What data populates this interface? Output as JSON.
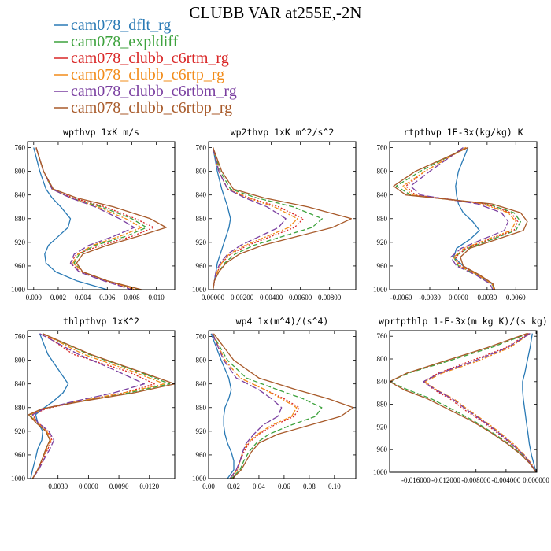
{
  "title": "CLUBB VAR at255E,-2N",
  "legend": [
    {
      "label": "cam078_dflt_rg",
      "color": "#2a7ab5",
      "dash": "solid"
    },
    {
      "label": "cam078_expldiff",
      "color": "#3da23d",
      "dash": "dash"
    },
    {
      "label": "cam078_clubb_c6rtm_rg",
      "color": "#d92626",
      "dash": "dot"
    },
    {
      "label": "cam078_clubb_c6rtp_rg",
      "color": "#f28c1a",
      "dash": "dashdot"
    },
    {
      "label": "cam078_clubb_c6rtbm_rg",
      "color": "#7a3fa0",
      "dash": "longdash"
    },
    {
      "label": "cam078_clubb_c6rtbp_rg",
      "color": "#a85a2a",
      "dash": "solid"
    }
  ],
  "chart_data": [
    {
      "type": "line",
      "title": "wpthvp  1xK m/s",
      "xlim": [
        -0.0005,
        0.0115
      ],
      "ylim": [
        1000,
        750
      ],
      "xticks": [
        "0.000",
        "0.002",
        "0.004",
        "0.006",
        "0.008",
        "0.010"
      ],
      "xtick_values": [
        0,
        0.002,
        0.004,
        0.006,
        0.008,
        0.01
      ],
      "yticks": [
        760,
        800,
        840,
        880,
        920,
        960,
        1000
      ],
      "y": [
        760,
        800,
        830,
        845,
        860,
        880,
        895,
        910,
        925,
        940,
        955,
        970,
        985,
        1000
      ],
      "series": [
        {
          "values": [
            0.0,
            0.0005,
            0.001,
            0.0015,
            0.0022,
            0.003,
            0.0028,
            0.002,
            0.0012,
            0.0009,
            0.001,
            0.0018,
            0.0035,
            0.006
          ]
        },
        {
          "values": [
            0.0002,
            0.0008,
            0.0015,
            0.003,
            0.0055,
            0.008,
            0.0092,
            0.0075,
            0.005,
            0.0037,
            0.0033,
            0.004,
            0.006,
            0.0085
          ]
        },
        {
          "values": [
            0.0002,
            0.0008,
            0.0015,
            0.0032,
            0.0058,
            0.0083,
            0.0098,
            0.008,
            0.0055,
            0.0035,
            0.003,
            0.0038,
            0.0058,
            0.0082
          ]
        },
        {
          "values": [
            0.0002,
            0.0008,
            0.0015,
            0.003,
            0.0052,
            0.0075,
            0.0088,
            0.007,
            0.0048,
            0.0036,
            0.0032,
            0.004,
            0.006,
            0.0084
          ]
        },
        {
          "values": [
            0.0002,
            0.0008,
            0.0015,
            0.003,
            0.005,
            0.007,
            0.0082,
            0.0065,
            0.0045,
            0.0033,
            0.003,
            0.0037,
            0.0057,
            0.008
          ]
        },
        {
          "values": [
            0.0002,
            0.0008,
            0.0016,
            0.0035,
            0.0065,
            0.0095,
            0.0108,
            0.0085,
            0.006,
            0.004,
            0.0035,
            0.004,
            0.006,
            0.0088
          ]
        }
      ]
    },
    {
      "type": "line",
      "title": "wp2thvp  1xK m^2/s^2",
      "xlim": [
        -0.0003,
        0.0098
      ],
      "ylim": [
        1000,
        750
      ],
      "xticks": [
        "0.00000",
        "0.00200",
        "0.00400",
        "0.00600",
        "0.00800"
      ],
      "xtick_values": [
        0,
        0.002,
        0.004,
        0.006,
        0.008
      ],
      "yticks": [
        760,
        800,
        840,
        880,
        920,
        960,
        1000
      ],
      "y": [
        760,
        800,
        830,
        845,
        860,
        880,
        895,
        910,
        925,
        940,
        955,
        970,
        985,
        1000
      ],
      "series": [
        {
          "values": [
            0.0,
            0.0003,
            0.0006,
            0.0008,
            0.001,
            0.0012,
            0.0011,
            0.0009,
            0.0007,
            0.0005,
            0.0003,
            0.0002,
            0.0001,
            0.0
          ]
        },
        {
          "values": [
            0.0,
            0.0005,
            0.0012,
            0.003,
            0.0055,
            0.0075,
            0.0068,
            0.0048,
            0.0028,
            0.0015,
            0.0008,
            0.0004,
            0.0001,
            0.0
          ]
        },
        {
          "values": [
            0.0,
            0.0004,
            0.001,
            0.0025,
            0.0045,
            0.0062,
            0.0056,
            0.004,
            0.0024,
            0.0012,
            0.0006,
            0.0003,
            0.0001,
            0.0
          ]
        },
        {
          "values": [
            0.0,
            0.0004,
            0.001,
            0.0024,
            0.0042,
            0.0058,
            0.0052,
            0.0037,
            0.0022,
            0.0011,
            0.0006,
            0.0003,
            0.0001,
            0.0
          ]
        },
        {
          "values": [
            0.0,
            0.0004,
            0.001,
            0.0022,
            0.0037,
            0.005,
            0.0045,
            0.0032,
            0.0019,
            0.001,
            0.0005,
            0.0002,
            0.0001,
            0.0
          ]
        },
        {
          "values": [
            0.0,
            0.0006,
            0.0014,
            0.0035,
            0.0065,
            0.0095,
            0.0082,
            0.0058,
            0.0034,
            0.0018,
            0.0009,
            0.0004,
            0.0001,
            0.0
          ]
        }
      ]
    },
    {
      "type": "line",
      "title": "rtpthvp  1E-3x(kg/kg) K",
      "xlim": [
        -0.0072,
        0.0082
      ],
      "ylim": [
        1000,
        750
      ],
      "xticks": [
        "-0.0060",
        "-0.0030",
        "0.0000",
        "0.0030",
        "0.0060"
      ],
      "xtick_values": [
        -0.006,
        -0.003,
        0,
        0.003,
        0.006
      ],
      "yticks": [
        760,
        800,
        840,
        880,
        920,
        960,
        1000
      ],
      "y": [
        760,
        800,
        825,
        840,
        855,
        870,
        885,
        900,
        915,
        930,
        945,
        960,
        975,
        990,
        1000
      ],
      "series": [
        {
          "values": [
            0.001,
            0.0,
            -0.0003,
            -0.0002,
            0.0,
            0.0005,
            0.0015,
            0.0022,
            0.0012,
            -0.0002,
            -0.0005,
            0.0005,
            0.002,
            0.0035,
            0.0038
          ]
        },
        {
          "values": [
            0.0008,
            -0.004,
            -0.0065,
            -0.005,
            0.003,
            0.0058,
            0.0065,
            0.006,
            0.0035,
            0.001,
            -0.0005,
            0.0,
            0.002,
            0.0035,
            0.0038
          ]
        },
        {
          "values": [
            0.0008,
            -0.0035,
            -0.0055,
            -0.0045,
            0.0028,
            0.0055,
            0.0062,
            0.0058,
            0.0032,
            0.0008,
            -0.0003,
            0.0002,
            0.0022,
            0.0036,
            0.0038
          ]
        },
        {
          "values": [
            0.0008,
            -0.0035,
            -0.0058,
            -0.0048,
            0.0025,
            0.0052,
            0.006,
            0.0055,
            0.003,
            0.0006,
            -0.0005,
            0.0001,
            0.002,
            0.0035,
            0.0037
          ]
        },
        {
          "values": [
            0.0005,
            -0.003,
            -0.005,
            -0.004,
            0.002,
            0.0045,
            0.0052,
            0.0048,
            0.0025,
            0.0003,
            -0.0008,
            -0.0002,
            0.0018,
            0.0033,
            0.0036
          ]
        },
        {
          "values": [
            0.001,
            -0.0045,
            -0.0068,
            -0.0055,
            0.0035,
            0.0065,
            0.0072,
            0.0068,
            0.004,
            0.0012,
            0.0002,
            0.0005,
            0.0022,
            0.0036,
            0.0038
          ]
        }
      ]
    },
    {
      "type": "line",
      "title": "thlpthvp  1xK^2",
      "xlim": [
        0.0,
        0.0145
      ],
      "ylim": [
        1000,
        750
      ],
      "xticks": [
        "0.0030",
        "0.0060",
        "0.0090",
        "0.0120"
      ],
      "xtick_values": [
        0.003,
        0.006,
        0.009,
        0.012
      ],
      "yticks": [
        760,
        800,
        840,
        880,
        920,
        960,
        1000
      ],
      "y": [
        755,
        790,
        820,
        840,
        855,
        870,
        882,
        892,
        905,
        920,
        935,
        950,
        965,
        985,
        1000
      ],
      "series": [
        {
          "values": [
            0.0012,
            0.002,
            0.0032,
            0.004,
            0.0035,
            0.0025,
            0.0015,
            0.0008,
            0.001,
            0.0015,
            0.0014,
            0.001,
            0.0008,
            0.0005,
            0.0003
          ]
        },
        {
          "values": [
            0.0015,
            0.006,
            0.011,
            0.014,
            0.01,
            0.005,
            0.0015,
            0.0002,
            0.0008,
            0.0018,
            0.0022,
            0.0018,
            0.0015,
            0.001,
            0.0005
          ]
        },
        {
          "values": [
            0.0015,
            0.0045,
            0.01,
            0.0125,
            0.0095,
            0.005,
            0.0018,
            0.0005,
            0.001,
            0.002,
            0.0024,
            0.002,
            0.0016,
            0.001,
            0.0005
          ]
        },
        {
          "values": [
            0.0015,
            0.0055,
            0.0105,
            0.0135,
            0.0095,
            0.0048,
            0.0015,
            0.0003,
            0.0009,
            0.0019,
            0.0023,
            0.0019,
            0.0015,
            0.001,
            0.0005
          ]
        },
        {
          "values": [
            0.0012,
            0.005,
            0.009,
            0.0115,
            0.0085,
            0.0045,
            0.0016,
            0.0005,
            0.001,
            0.0021,
            0.0026,
            0.0022,
            0.0017,
            0.0011,
            0.0005
          ]
        },
        {
          "values": [
            0.0015,
            0.0062,
            0.0112,
            0.0145,
            0.0105,
            0.0052,
            0.0014,
            0.0001,
            0.0008,
            0.0018,
            0.0022,
            0.0018,
            0.0015,
            0.001,
            0.0005
          ]
        }
      ]
    },
    {
      "type": "line",
      "title": "wp4  1x(m^4)/(s^4)",
      "xlim": [
        0.0,
        0.117
      ],
      "ylim": [
        1000,
        750
      ],
      "xticks": [
        "0.00",
        "0.02",
        "0.04",
        "0.06",
        "0.08",
        "0.10"
      ],
      "xtick_values": [
        0,
        0.02,
        0.04,
        0.06,
        0.08,
        0.1
      ],
      "yticks": [
        760,
        800,
        840,
        880,
        920,
        960,
        1000
      ],
      "y": [
        755,
        800,
        830,
        850,
        865,
        880,
        895,
        910,
        925,
        940,
        955,
        970,
        985,
        1000
      ],
      "series": [
        {
          "values": [
            0.002,
            0.01,
            0.016,
            0.018,
            0.016,
            0.013,
            0.012,
            0.012,
            0.013,
            0.015,
            0.018,
            0.02,
            0.02,
            0.015
          ]
        },
        {
          "values": [
            0.003,
            0.015,
            0.03,
            0.055,
            0.075,
            0.09,
            0.085,
            0.065,
            0.048,
            0.038,
            0.032,
            0.028,
            0.025,
            0.018
          ]
        },
        {
          "values": [
            0.003,
            0.013,
            0.025,
            0.045,
            0.06,
            0.072,
            0.068,
            0.052,
            0.04,
            0.032,
            0.028,
            0.025,
            0.023,
            0.017
          ]
        },
        {
          "values": [
            0.003,
            0.013,
            0.025,
            0.045,
            0.058,
            0.07,
            0.066,
            0.05,
            0.039,
            0.031,
            0.027,
            0.025,
            0.023,
            0.017
          ]
        },
        {
          "values": [
            0.003,
            0.012,
            0.022,
            0.04,
            0.05,
            0.058,
            0.055,
            0.043,
            0.036,
            0.03,
            0.027,
            0.025,
            0.022,
            0.017
          ]
        },
        {
          "values": [
            0.004,
            0.02,
            0.04,
            0.07,
            0.095,
            0.115,
            0.105,
            0.08,
            0.055,
            0.04,
            0.034,
            0.03,
            0.026,
            0.019
          ]
        }
      ]
    },
    {
      "type": "line",
      "title": "wprtpthlp  1-E-3x(m kg K)/(s kg)",
      "xlim": [
        -0.0195,
        0.0001
      ],
      "ylim": [
        1000,
        750
      ],
      "xticks": [
        "-0.016000",
        "-0.012000",
        "-0.008000",
        "-0.004000",
        "0.000000"
      ],
      "xtick_values": [
        -0.016,
        -0.012,
        -0.008,
        -0.004,
        0
      ],
      "yticks": [
        760,
        800,
        840,
        880,
        920,
        960,
        1000
      ],
      "y": [
        755,
        780,
        805,
        825,
        840,
        855,
        870,
        890,
        910,
        930,
        950,
        970,
        985,
        1000
      ],
      "series": [
        {
          "values": [
            -0.0005,
            -0.0008,
            -0.0012,
            -0.0015,
            -0.0018,
            -0.0018,
            -0.0017,
            -0.0015,
            -0.0013,
            -0.0011,
            -0.0009,
            -0.0006,
            -0.0003,
            0.0
          ]
        },
        {
          "values": [
            -0.001,
            -0.006,
            -0.012,
            -0.017,
            -0.0195,
            -0.017,
            -0.014,
            -0.011,
            -0.0082,
            -0.0058,
            -0.0036,
            -0.0018,
            -0.0008,
            0.0
          ]
        },
        {
          "values": [
            -0.001,
            -0.004,
            -0.009,
            -0.013,
            -0.015,
            -0.0135,
            -0.0115,
            -0.0095,
            -0.0072,
            -0.0052,
            -0.0033,
            -0.0016,
            -0.0007,
            0.0
          ]
        },
        {
          "values": [
            -0.0008,
            -0.0035,
            -0.008,
            -0.0125,
            -0.0148,
            -0.0132,
            -0.011,
            -0.009,
            -0.0068,
            -0.0048,
            -0.003,
            -0.0015,
            -0.0006,
            0.0
          ]
        },
        {
          "values": [
            -0.0008,
            -0.0038,
            -0.0085,
            -0.0128,
            -0.015,
            -0.0133,
            -0.0112,
            -0.0092,
            -0.007,
            -0.005,
            -0.0032,
            -0.0016,
            -0.0007,
            0.0
          ]
        },
        {
          "values": [
            -0.0012,
            -0.0065,
            -0.0125,
            -0.0172,
            -0.0195,
            -0.0175,
            -0.0145,
            -0.0115,
            -0.0085,
            -0.006,
            -0.0038,
            -0.0019,
            -0.0008,
            0.0
          ]
        }
      ]
    }
  ]
}
